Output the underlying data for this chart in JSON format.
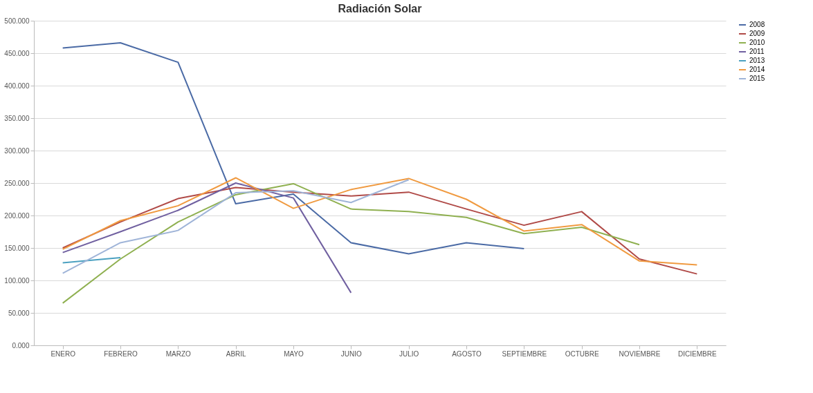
{
  "chart_data": {
    "type": "line",
    "title": "Radiación Solar",
    "categories": [
      "ENERO",
      "FEBRERO",
      "MARZO",
      "ABRIL",
      "MAYO",
      "JUNIO",
      "JULIO",
      "AGOSTO",
      "SEPTIEMBRE",
      "OCTUBRE",
      "NOVIEMBRE",
      "DICIEMBRE"
    ],
    "series": [
      {
        "name": "2008",
        "color": "#4a6aa5",
        "values": [
          458,
          466,
          436,
          218,
          233,
          158,
          141,
          158,
          149,
          null,
          null,
          null
        ]
      },
      {
        "name": "2009",
        "color": "#b04a47",
        "values": [
          150,
          190,
          226,
          243,
          236,
          230,
          236,
          210,
          185,
          206,
          133,
          110
        ]
      },
      {
        "name": "2010",
        "color": "#8fb050",
        "values": [
          65,
          133,
          190,
          232,
          249,
          210,
          206,
          197,
          172,
          182,
          155,
          null
        ]
      },
      {
        "name": "2011",
        "color": "#7060a0",
        "values": [
          143,
          175,
          208,
          250,
          227,
          81,
          null,
          null,
          null,
          null,
          null,
          null
        ]
      },
      {
        "name": "2013",
        "color": "#4aa0c0",
        "values": [
          127,
          135,
          null,
          null,
          null,
          null,
          null,
          null,
          null,
          null,
          null,
          null
        ]
      },
      {
        "name": "2014",
        "color": "#f09a40",
        "values": [
          148,
          192,
          215,
          258,
          211,
          240,
          257,
          225,
          176,
          186,
          130,
          124
        ]
      },
      {
        "name": "2015",
        "color": "#9fb4d8",
        "values": [
          111,
          158,
          177,
          235,
          238,
          220,
          255,
          null,
          null,
          null,
          null,
          null
        ]
      }
    ],
    "ylim": [
      0,
      500
    ],
    "yticks": [
      {
        "value": 0,
        "label": "0.000"
      },
      {
        "value": 50,
        "label": "50.000"
      },
      {
        "value": 100,
        "label": "100.000"
      },
      {
        "value": 150,
        "label": "150.000"
      },
      {
        "value": 200,
        "label": "200.000"
      },
      {
        "value": 250,
        "label": "250.000"
      },
      {
        "value": 300,
        "label": "300.000"
      },
      {
        "value": 350,
        "label": "350.000"
      },
      {
        "value": 400,
        "label": "400.000"
      },
      {
        "value": 450,
        "label": "450.000"
      },
      {
        "value": 500,
        "label": "500.000"
      }
    ],
    "grid": "y",
    "legend": "right",
    "marker": "none"
  }
}
